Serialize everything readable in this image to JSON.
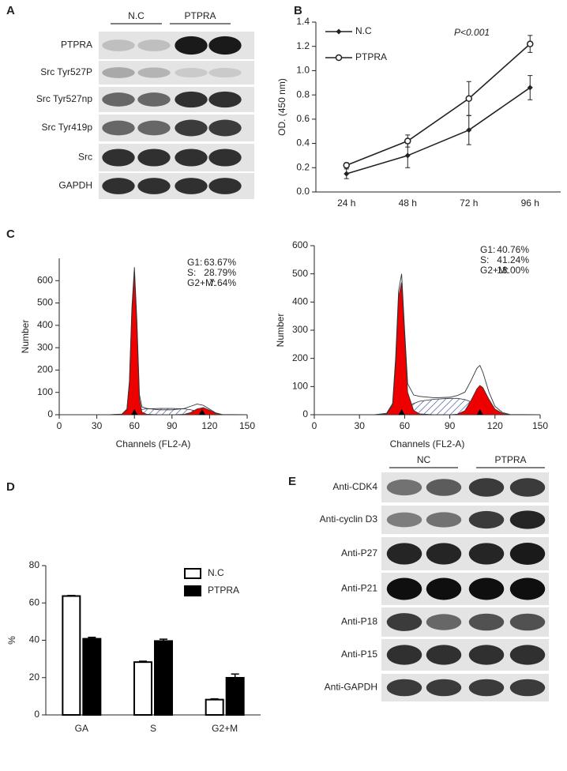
{
  "panel_labels": [
    "A",
    "B",
    "C",
    "D",
    "E"
  ],
  "blot_a": {
    "groups": [
      "N.C",
      "PTPRA"
    ],
    "rows": [
      "PTPRA",
      "Src Tyr527P",
      "Src Tyr527np",
      "Src Tyr419p",
      "Src",
      "GAPDH"
    ]
  },
  "blot_e": {
    "groups": [
      "NC",
      "PTPRA"
    ],
    "rows": [
      "Anti-CDK4",
      "Anti-cyclin D3",
      "Anti-P27",
      "Anti-P21",
      "Anti-P18",
      "Anti-P15",
      "Anti-GAPDH"
    ]
  },
  "chart_data": [
    {
      "type": "line",
      "ylabel": "OD. (450 nm)",
      "annotation": "P<0.001",
      "legend": "upper left",
      "categories": [
        "24 h",
        "48 h",
        "72 h",
        "96 h"
      ],
      "ylim": [
        0,
        1.4
      ],
      "yticks": [
        {
          "value": 0,
          "label": "0.0"
        },
        0.2,
        0.4,
        0.6,
        0.8,
        {
          "value": 1,
          "label": "1.0"
        },
        1.2,
        1.4
      ],
      "series": [
        {
          "name": "N.C",
          "color": "#222222",
          "marker": "diamond",
          "values": [
            0.15,
            0.3,
            0.51,
            0.86
          ],
          "errors": [
            0.04,
            0.1,
            0.12,
            0.1
          ]
        },
        {
          "name": "PTPRA",
          "color": "#222222",
          "marker": "circle-open",
          "values": [
            0.22,
            0.42,
            0.77,
            1.22
          ],
          "errors": [
            0.02,
            0.05,
            0.14,
            0.07
          ]
        }
      ]
    },
    {
      "type": "flow",
      "ylabel": "Number",
      "xlabel": "Channels  (FL2-A)",
      "xlim": [
        0,
        150
      ],
      "xticks": [
        0,
        30,
        60,
        90,
        120,
        150
      ],
      "ylim": [
        0,
        700
      ],
      "yticks": [
        0,
        100,
        200,
        300,
        400,
        500,
        600
      ],
      "stats": [
        {
          "label": "G1:",
          "value": "63.67%"
        },
        {
          "label": "S:",
          "value": "28.79%"
        },
        {
          "label": "G2+M:",
          "value": "7.64%"
        }
      ],
      "x": [
        0,
        40,
        50,
        54,
        56,
        58,
        60,
        62,
        64,
        66,
        70,
        80,
        90,
        100,
        105,
        110,
        115,
        120,
        125,
        130,
        150
      ],
      "values": [
        0,
        0,
        3,
        25,
        150,
        480,
        660,
        420,
        90,
        35,
        28,
        22,
        22,
        28,
        38,
        48,
        42,
        25,
        8,
        1,
        0
      ],
      "g1_values": [
        0,
        0,
        2,
        22,
        140,
        460,
        640,
        400,
        70,
        12,
        2,
        0,
        0,
        0,
        0,
        0,
        0,
        0,
        0,
        0,
        0
      ],
      "s_values": [
        0,
        0,
        0,
        0,
        2,
        6,
        12,
        16,
        20,
        24,
        26,
        28,
        28,
        26,
        22,
        16,
        10,
        5,
        2,
        0,
        0
      ],
      "g2_values": [
        0,
        0,
        0,
        0,
        0,
        0,
        0,
        0,
        0,
        0,
        0,
        0,
        0,
        2,
        10,
        26,
        32,
        20,
        6,
        0,
        0
      ],
      "color": "#ee0000"
    },
    {
      "type": "flow",
      "ylabel": "Number",
      "xlabel": "Channels  (FL2-A)",
      "xlim": [
        0,
        150
      ],
      "xticks": [
        0,
        30,
        60,
        90,
        120,
        150
      ],
      "ylim": [
        0,
        600
      ],
      "yticks": [
        0,
        100,
        200,
        300,
        400,
        500,
        600
      ],
      "stats": [
        {
          "label": "G1:",
          "value": "40.76%"
        },
        {
          "label": "S:",
          "value": "41.24%"
        },
        {
          "label": "G2+M:",
          "value": "18.00%"
        }
      ],
      "x": [
        0,
        40,
        48,
        52,
        54,
        56,
        58,
        60,
        62,
        66,
        70,
        80,
        90,
        95,
        100,
        104,
        108,
        110,
        112,
        116,
        120,
        125,
        130,
        150
      ],
      "values": [
        0,
        0,
        5,
        40,
        200,
        440,
        500,
        300,
        110,
        70,
        65,
        60,
        62,
        68,
        80,
        120,
        165,
        175,
        150,
        80,
        30,
        8,
        1,
        0
      ],
      "g1_values": [
        0,
        0,
        3,
        35,
        180,
        420,
        470,
        280,
        80,
        15,
        3,
        0,
        0,
        0,
        0,
        0,
        0,
        0,
        0,
        0,
        0,
        0,
        0,
        0
      ],
      "s_values": [
        0,
        0,
        0,
        0,
        4,
        8,
        14,
        20,
        28,
        40,
        48,
        55,
        58,
        58,
        54,
        46,
        36,
        30,
        24,
        14,
        6,
        2,
        0,
        0
      ],
      "g2_values": [
        0,
        0,
        0,
        0,
        0,
        0,
        0,
        0,
        0,
        0,
        0,
        0,
        0,
        2,
        14,
        50,
        92,
        104,
        96,
        55,
        20,
        5,
        0,
        0
      ],
      "color": "#ee0000"
    },
    {
      "type": "bar",
      "ylabel": "%",
      "legend": "upper right",
      "categories": [
        "GA",
        "S",
        "G2+M"
      ],
      "ylim": [
        0,
        80
      ],
      "yticks": [
        0,
        20,
        40,
        60,
        80
      ],
      "series": [
        {
          "name": "N.C",
          "color": "#ffffff",
          "values": [
            63.7,
            28.3,
            8.2
          ],
          "errors": [
            0.3,
            0.5,
            0.4
          ]
        },
        {
          "name": "PTPRA",
          "color": "#000000",
          "values": [
            40.8,
            39.6,
            19.9
          ],
          "errors": [
            0.8,
            1,
            2
          ]
        }
      ]
    }
  ]
}
